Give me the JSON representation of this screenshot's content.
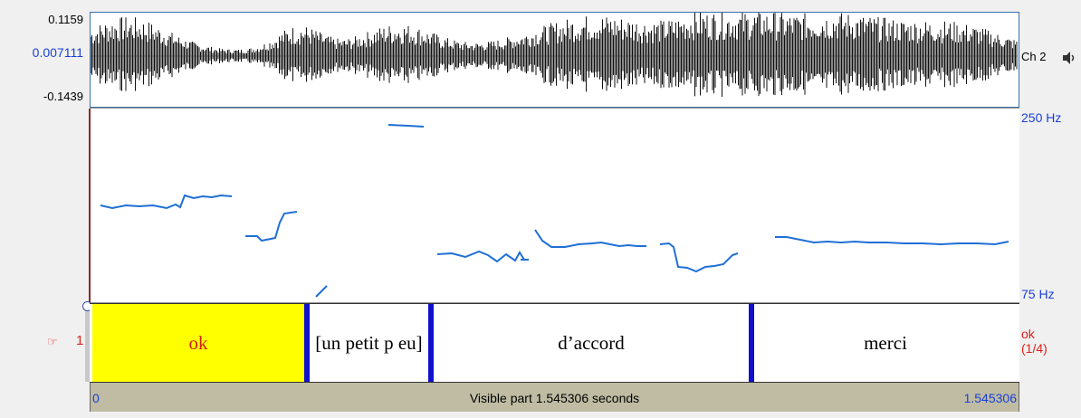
{
  "waveform": {
    "max_label": "0.1159",
    "mid_label": "0.007111",
    "min_label": "-0.1439",
    "channel_label": "Ch 2",
    "speaker_icon": "speaker-icon"
  },
  "pitch": {
    "top_label": "250 Hz",
    "bottom_label": "75 Hz"
  },
  "tier": {
    "number": "1",
    "pointer_icon": "pointing-hand-icon",
    "intervals": [
      {
        "text": "ok",
        "selected": true
      },
      {
        "text": "[un petit p eu]",
        "selected": false
      },
      {
        "text": "d’accord",
        "selected": false
      },
      {
        "text": "merci",
        "selected": false
      }
    ],
    "right_line1": "ok",
    "right_line2": "(1/4)"
  },
  "timebar": {
    "start": "0",
    "end": "1.545306",
    "caption": "Visible part 1.545306 seconds"
  },
  "colors": {
    "selection": "#ffff00",
    "pitch_line": "#1f6fd6",
    "boundary": "#1010cc",
    "label_blue": "#1a3fd6",
    "label_red": "#e0201a"
  }
}
